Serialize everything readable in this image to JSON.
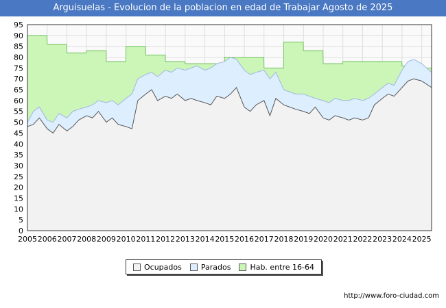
{
  "title": "Arguisuelas - Evolucion de la poblacion en edad de Trabajar Agosto de 2025",
  "source": "http://www.foro-ciudad.com",
  "chart_data": {
    "type": "area",
    "title": "Arguisuelas - Evolucion de la poblacion en edad de Trabajar Agosto de 2025",
    "x_ticks": [
      "2005",
      "2006",
      "2007",
      "2008",
      "2009",
      "2010",
      "2011",
      "2012",
      "2013",
      "2014",
      "2015",
      "2016",
      "2017",
      "2018",
      "2019",
      "2020",
      "2021",
      "2022",
      "2023",
      "2024",
      "2025"
    ],
    "ylim": [
      0,
      95
    ],
    "y_ticks": [
      0,
      5,
      10,
      15,
      20,
      25,
      30,
      35,
      40,
      45,
      50,
      55,
      60,
      65,
      70,
      75,
      80,
      85,
      90,
      95
    ],
    "grid": true,
    "legend_position": "bottom",
    "series": [
      {
        "name": "Ocupados",
        "color": "#f2f2f2",
        "line": "#555555",
        "x": [
          2005.0,
          2005.3,
          2005.6,
          2006.0,
          2006.3,
          2006.6,
          2007.0,
          2007.3,
          2007.6,
          2008.0,
          2008.3,
          2008.6,
          2009.0,
          2009.3,
          2009.6,
          2010.0,
          2010.3,
          2010.6,
          2011.0,
          2011.3,
          2011.6,
          2012.0,
          2012.3,
          2012.6,
          2013.0,
          2013.3,
          2013.6,
          2014.0,
          2014.3,
          2014.6,
          2015.0,
          2015.3,
          2015.6,
          2016.0,
          2016.3,
          2016.6,
          2017.0,
          2017.3,
          2017.6,
          2018.0,
          2018.3,
          2018.6,
          2019.0,
          2019.3,
          2019.6,
          2020.0,
          2020.3,
          2020.6,
          2021.0,
          2021.3,
          2021.6,
          2022.0,
          2022.3,
          2022.6,
          2023.0,
          2023.3,
          2023.6,
          2024.0,
          2024.3,
          2024.6,
          2025.0,
          2025.5
        ],
        "values": [
          48,
          49,
          52,
          47,
          45,
          49,
          46,
          48,
          51,
          53,
          52,
          55,
          50,
          52,
          49,
          48,
          47,
          60,
          63,
          65,
          60,
          62,
          61,
          63,
          60,
          61,
          60,
          59,
          58,
          62,
          61,
          63,
          66,
          57,
          55,
          58,
          60,
          53,
          61,
          58,
          57,
          56,
          55,
          54,
          57,
          52,
          51,
          53,
          52,
          51,
          52,
          51,
          52,
          58,
          61,
          63,
          62,
          66,
          69,
          70,
          69,
          66
        ]
      },
      {
        "name": "Parados",
        "color": "#ddeeff",
        "line": "#9fb8e0",
        "x": [
          2005.0,
          2005.3,
          2005.6,
          2006.0,
          2006.3,
          2006.6,
          2007.0,
          2007.3,
          2007.6,
          2008.0,
          2008.3,
          2008.6,
          2009.0,
          2009.3,
          2009.6,
          2010.0,
          2010.3,
          2010.6,
          2011.0,
          2011.3,
          2011.6,
          2012.0,
          2012.3,
          2012.6,
          2013.0,
          2013.3,
          2013.6,
          2014.0,
          2014.3,
          2014.6,
          2015.0,
          2015.3,
          2015.6,
          2016.0,
          2016.3,
          2016.6,
          2017.0,
          2017.3,
          2017.6,
          2018.0,
          2018.3,
          2018.6,
          2019.0,
          2019.3,
          2019.6,
          2020.0,
          2020.3,
          2020.6,
          2021.0,
          2021.3,
          2021.6,
          2022.0,
          2022.3,
          2022.6,
          2023.0,
          2023.3,
          2023.6,
          2024.0,
          2024.3,
          2024.6,
          2025.0,
          2025.5
        ],
        "values": [
          50,
          55,
          57,
          51,
          50,
          54,
          52,
          55,
          56,
          57,
          58,
          60,
          59,
          60,
          58,
          61,
          63,
          70,
          72,
          73,
          71,
          74,
          73,
          75,
          74,
          75,
          76,
          74,
          75,
          77,
          78,
          80,
          79,
          74,
          72,
          73,
          74,
          70,
          73,
          65,
          64,
          63,
          63,
          62,
          61,
          60,
          59,
          61,
          60,
          60,
          61,
          60,
          61,
          63,
          66,
          68,
          67,
          74,
          78,
          79,
          77,
          73
        ]
      },
      {
        "name": "Hab. entre 16-64",
        "color": "#ccf5b8",
        "line": "#77c266",
        "x": [
          2005.0,
          2005.99,
          2006.0,
          2006.99,
          2007.0,
          2007.99,
          2008.0,
          2008.99,
          2009.0,
          2009.99,
          2010.0,
          2010.99,
          2011.0,
          2011.99,
          2012.0,
          2012.99,
          2013.0,
          2013.99,
          2014.0,
          2014.99,
          2015.0,
          2015.99,
          2016.0,
          2016.99,
          2017.0,
          2017.99,
          2018.0,
          2018.99,
          2019.0,
          2019.99,
          2020.0,
          2020.99,
          2021.0,
          2021.99,
          2022.0,
          2022.99,
          2023.0,
          2023.99,
          2024.0,
          2024.99,
          2025.0,
          2025.5
        ],
        "values": [
          90,
          90,
          86,
          86,
          82,
          82,
          83,
          83,
          78,
          78,
          85,
          85,
          81,
          81,
          78,
          78,
          77,
          77,
          77,
          77,
          80,
          80,
          80,
          80,
          75,
          75,
          87,
          87,
          83,
          83,
          77,
          77,
          78,
          78,
          78,
          78,
          78,
          78,
          76,
          76,
          75,
          75
        ]
      }
    ]
  }
}
